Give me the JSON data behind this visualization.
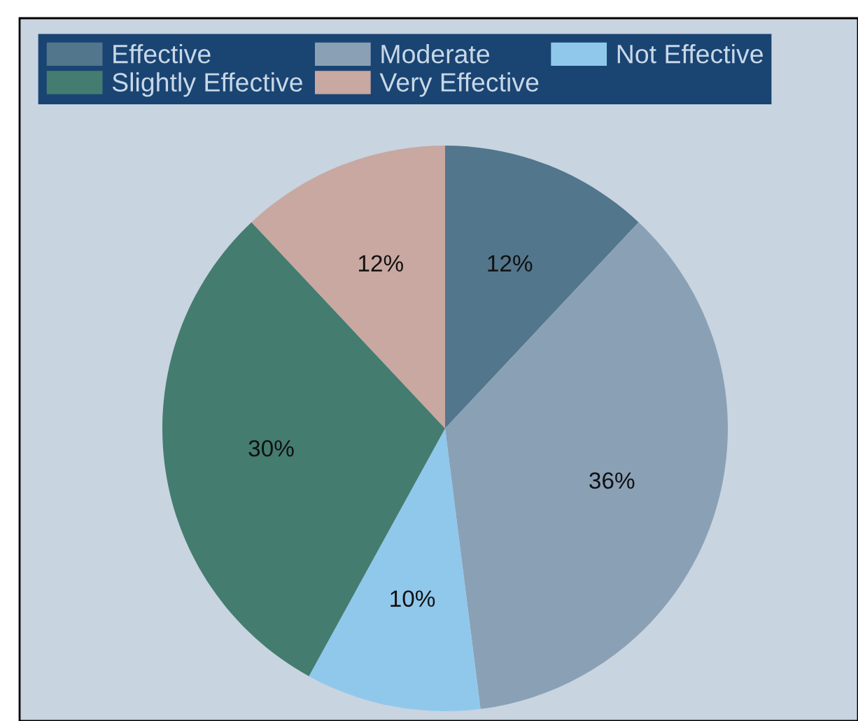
{
  "chart_data": {
    "type": "pie",
    "categories": [
      "Effective",
      "Moderate",
      "Not Effective",
      "Slightly Effective",
      "Very Effective"
    ],
    "values": [
      12,
      36,
      10,
      30,
      12
    ],
    "value_labels": [
      "12%",
      "36%",
      "10%",
      "30%",
      "12%"
    ],
    "colors": [
      "#52768c",
      "#8aa0b5",
      "#90c8ec",
      "#447c70",
      "#c8a8a0"
    ],
    "legend": "top"
  }
}
